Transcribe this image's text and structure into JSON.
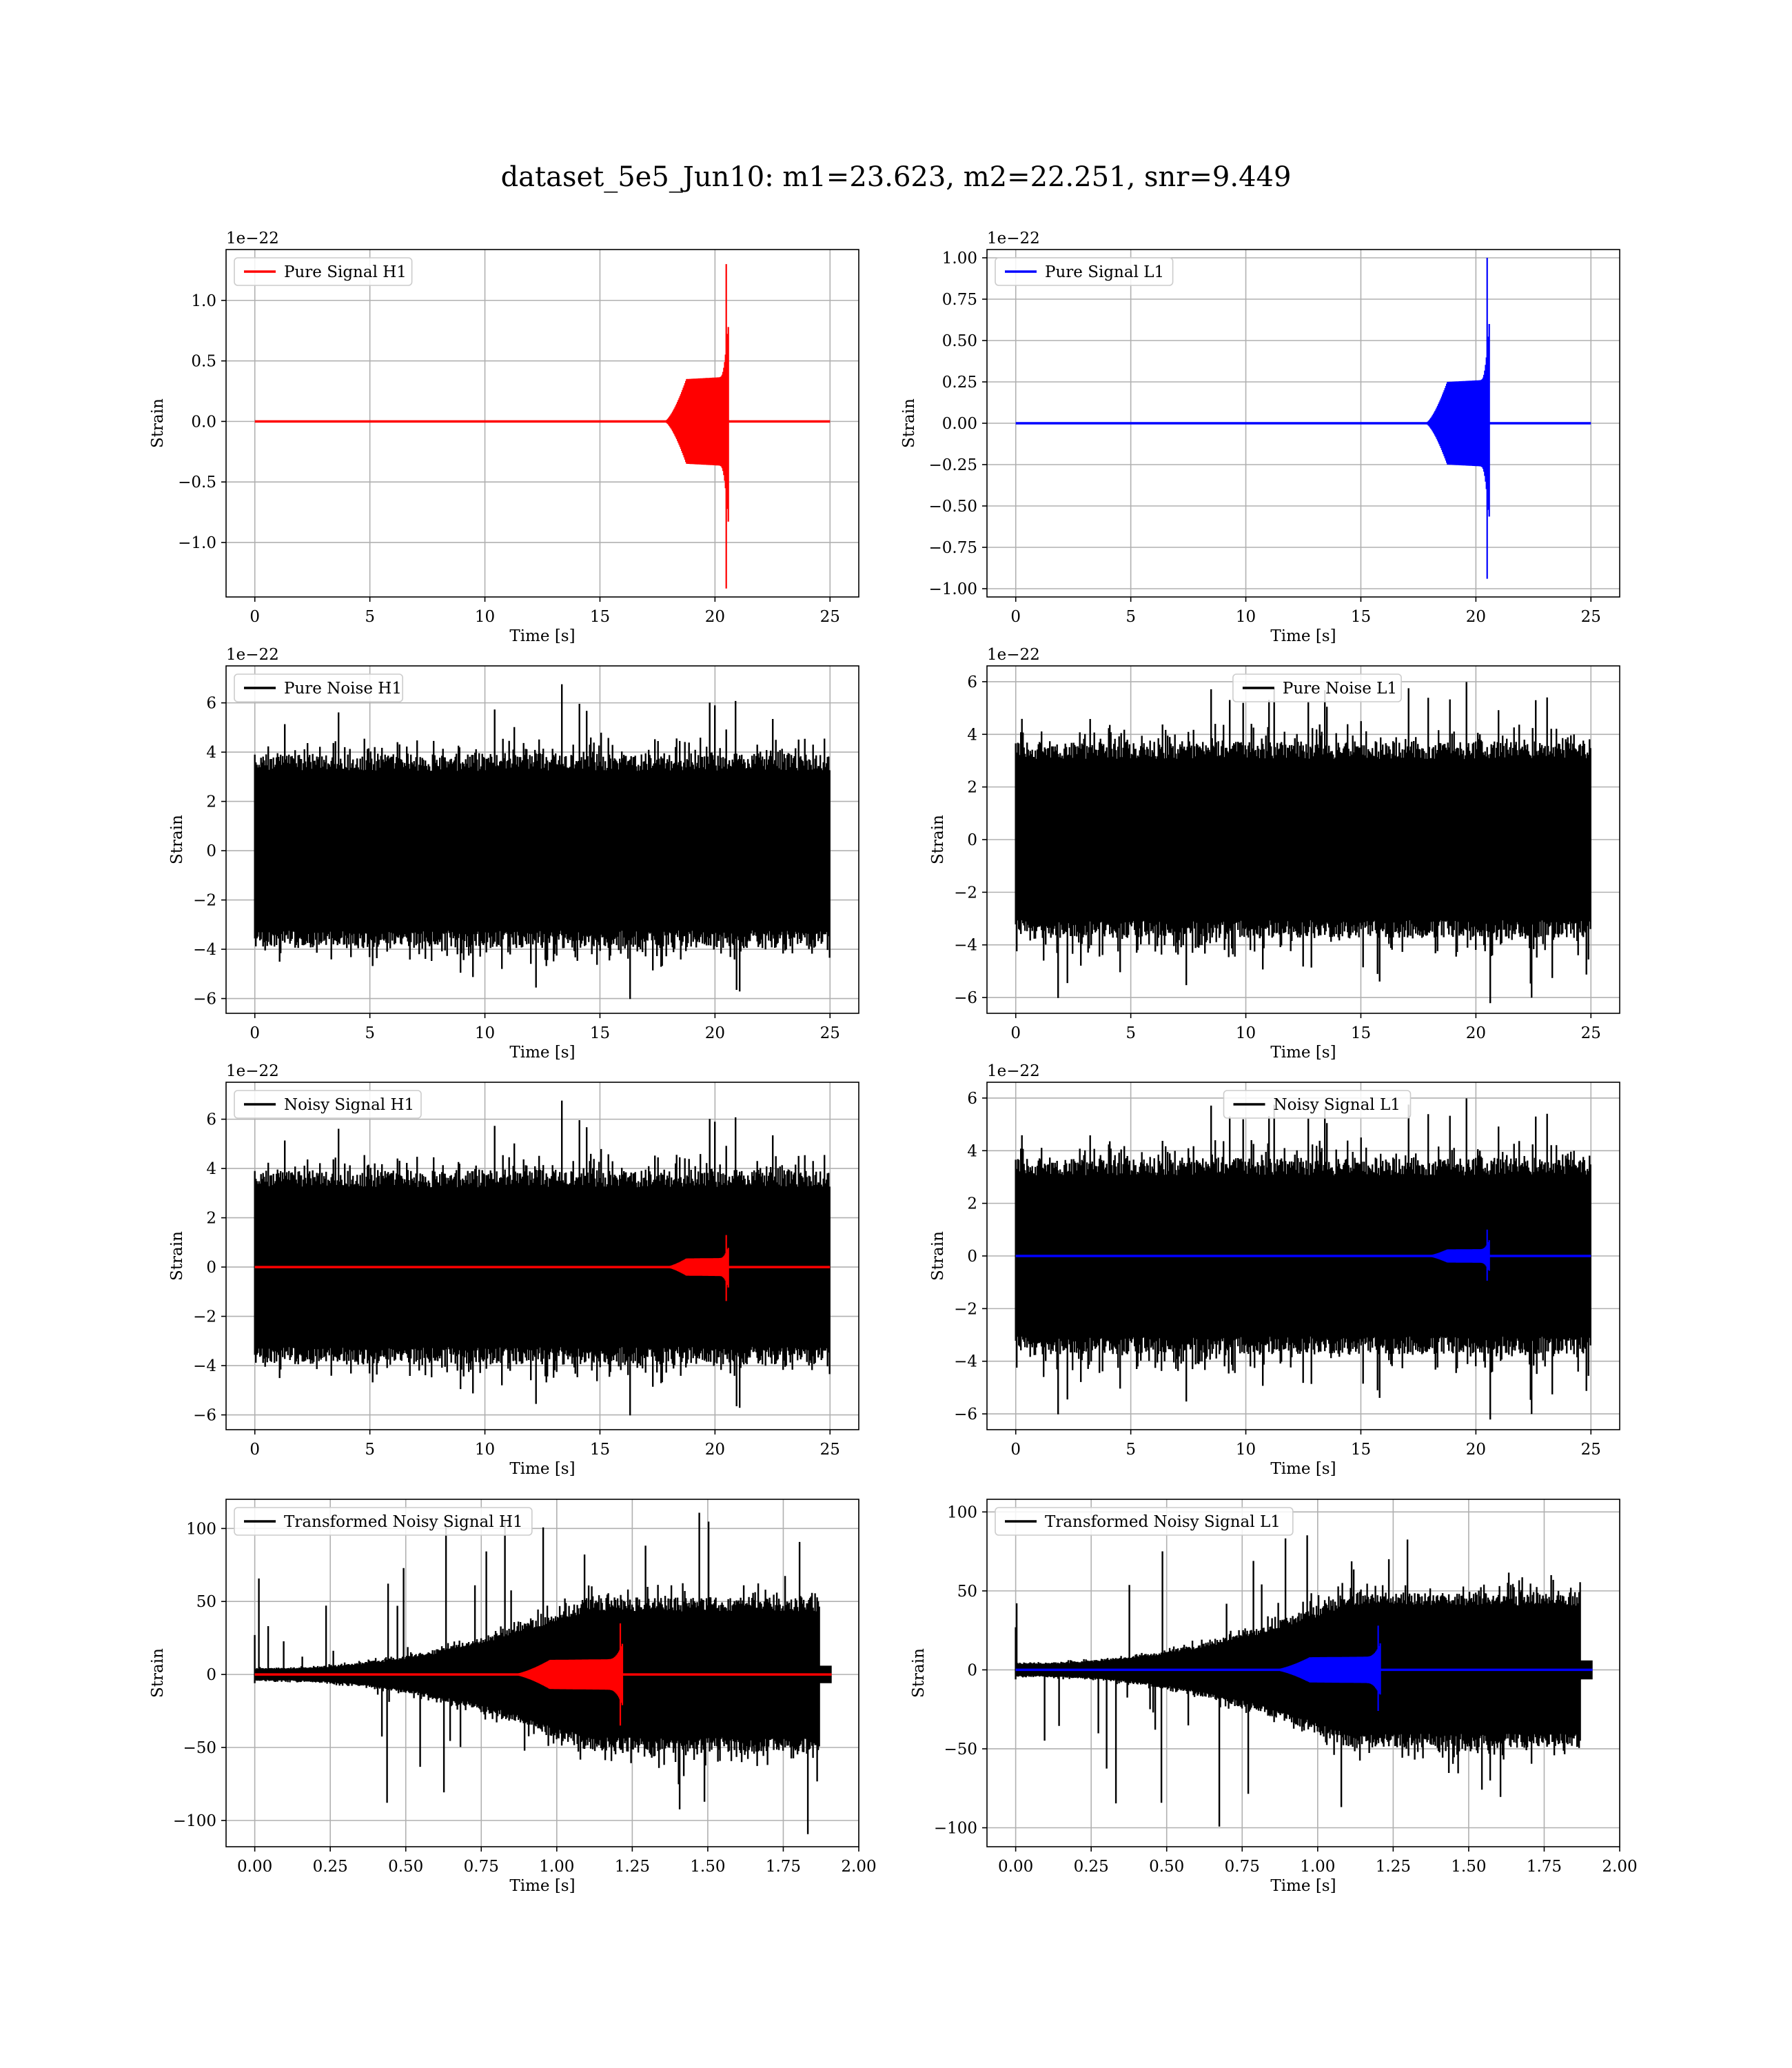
{
  "figure": {
    "title": "dataset_5e5_Jun10: m1=23.623, m2=22.251, snr=9.449"
  },
  "chart_data": [
    {
      "type": "line",
      "legend": "Pure Signal H1",
      "legend_position": "top-left",
      "xlabel": "Time [s]",
      "ylabel": "Strain",
      "y_offset_text": "1e−22",
      "xlim": [
        -1.25,
        26.25
      ],
      "ylim": [
        -1.45,
        1.42
      ],
      "xticks": [
        0,
        5,
        10,
        15,
        20,
        25
      ],
      "xtick_labels": [
        "0",
        "5",
        "10",
        "15",
        "20",
        "25"
      ],
      "yticks": [
        -1.0,
        -0.5,
        0.0,
        0.5,
        1.0
      ],
      "ytick_labels": [
        "−1.0",
        "−0.5",
        "0.0",
        "0.5",
        "1.0"
      ],
      "grid": true,
      "series": [
        {
          "kind": "chirp",
          "color": "#ff0000",
          "t_start": 0,
          "t_end": 25,
          "t_onset": 17.8,
          "t_merger": 20.55,
          "amp_plateau": 0.35,
          "peak_pos": 1.3,
          "peak_neg": -1.38,
          "seed": 11
        }
      ]
    },
    {
      "type": "line",
      "legend": "Pure Signal L1",
      "legend_position": "top-left",
      "xlabel": "Time [s]",
      "ylabel": "Strain",
      "y_offset_text": "1e−22",
      "xlim": [
        -1.25,
        26.25
      ],
      "ylim": [
        -1.05,
        1.05
      ],
      "xticks": [
        0,
        5,
        10,
        15,
        20,
        25
      ],
      "xtick_labels": [
        "0",
        "5",
        "10",
        "15",
        "20",
        "25"
      ],
      "yticks": [
        -1.0,
        -0.75,
        -0.5,
        -0.25,
        0.0,
        0.25,
        0.5,
        0.75,
        1.0
      ],
      "ytick_labels": [
        "−1.00",
        "−0.75",
        "−0.50",
        "−0.25",
        "0.00",
        "0.25",
        "0.50",
        "0.75",
        "1.00"
      ],
      "grid": true,
      "series": [
        {
          "kind": "chirp",
          "color": "#0000ff",
          "t_start": 0,
          "t_end": 25,
          "t_onset": 17.8,
          "t_merger": 20.55,
          "amp_plateau": 0.25,
          "peak_pos": 1.0,
          "peak_neg": -0.94,
          "seed": 12
        }
      ]
    },
    {
      "type": "line",
      "legend": "Pure Noise H1",
      "legend_position": "top-left",
      "xlabel": "Time [s]",
      "ylabel": "Strain",
      "y_offset_text": "1e−22",
      "xlim": [
        -1.25,
        26.25
      ],
      "ylim": [
        -6.6,
        7.5
      ],
      "xticks": [
        0,
        5,
        10,
        15,
        20,
        25
      ],
      "xtick_labels": [
        "0",
        "5",
        "10",
        "15",
        "20",
        "25"
      ],
      "yticks": [
        -6,
        -4,
        -2,
        0,
        2,
        4,
        6
      ],
      "ytick_labels": [
        "−6",
        "−4",
        "−2",
        "0",
        "2",
        "4",
        "6"
      ],
      "grid": true,
      "series": [
        {
          "kind": "noise",
          "color": "#000000",
          "t_start": 0,
          "t_end": 25,
          "core": 3.6,
          "spike_max": 6.9,
          "spike_min": -6.1,
          "seed": 21
        }
      ]
    },
    {
      "type": "line",
      "legend": "Pure Noise L1",
      "legend_position": "top-center",
      "xlabel": "Time [s]",
      "ylabel": "Strain",
      "y_offset_text": "1e−22",
      "xlim": [
        -1.25,
        26.25
      ],
      "ylim": [
        -6.6,
        6.6
      ],
      "xticks": [
        0,
        5,
        10,
        15,
        20,
        25
      ],
      "xtick_labels": [
        "0",
        "5",
        "10",
        "15",
        "20",
        "25"
      ],
      "yticks": [
        -6,
        -4,
        -2,
        0,
        2,
        4,
        6
      ],
      "ytick_labels": [
        "−6",
        "−4",
        "−2",
        "0",
        "2",
        "4",
        "6"
      ],
      "grid": true,
      "series": [
        {
          "kind": "noise",
          "color": "#000000",
          "t_start": 0,
          "t_end": 25,
          "core": 3.4,
          "spike_max": 6.0,
          "spike_min": -6.3,
          "seed": 22
        }
      ]
    },
    {
      "type": "line",
      "legend": "Noisy Signal H1",
      "legend_position": "top-left",
      "xlabel": "Time [s]",
      "ylabel": "Strain",
      "y_offset_text": "1e−22",
      "xlim": [
        -1.25,
        26.25
      ],
      "ylim": [
        -6.6,
        7.5
      ],
      "xticks": [
        0,
        5,
        10,
        15,
        20,
        25
      ],
      "xtick_labels": [
        "0",
        "5",
        "10",
        "15",
        "20",
        "25"
      ],
      "yticks": [
        -6,
        -4,
        -2,
        0,
        2,
        4,
        6
      ],
      "ytick_labels": [
        "−6",
        "−4",
        "−2",
        "0",
        "2",
        "4",
        "6"
      ],
      "grid": true,
      "series": [
        {
          "kind": "noise",
          "color": "#000000",
          "t_start": 0,
          "t_end": 25,
          "core": 3.6,
          "spike_max": 6.9,
          "spike_min": -6.1,
          "seed": 21
        },
        {
          "kind": "chirp",
          "color": "#ff0000",
          "t_start": 0,
          "t_end": 25,
          "t_onset": 17.8,
          "t_merger": 20.55,
          "amp_plateau": 0.35,
          "peak_pos": 1.3,
          "peak_neg": -1.38,
          "seed": 11
        }
      ]
    },
    {
      "type": "line",
      "legend": "Noisy Signal L1",
      "legend_position": "top-center",
      "xlabel": "Time [s]",
      "ylabel": "Strain",
      "y_offset_text": "1e−22",
      "xlim": [
        -1.25,
        26.25
      ],
      "ylim": [
        -6.6,
        6.6
      ],
      "xticks": [
        0,
        5,
        10,
        15,
        20,
        25
      ],
      "xtick_labels": [
        "0",
        "5",
        "10",
        "15",
        "20",
        "25"
      ],
      "yticks": [
        -6,
        -4,
        -2,
        0,
        2,
        4,
        6
      ],
      "ytick_labels": [
        "−6",
        "−4",
        "−2",
        "0",
        "2",
        "4",
        "6"
      ],
      "grid": true,
      "series": [
        {
          "kind": "noise",
          "color": "#000000",
          "t_start": 0,
          "t_end": 25,
          "core": 3.4,
          "spike_max": 6.0,
          "spike_min": -6.3,
          "seed": 22
        },
        {
          "kind": "chirp",
          "color": "#0000ff",
          "t_start": 0,
          "t_end": 25,
          "t_onset": 17.8,
          "t_merger": 20.55,
          "amp_plateau": 0.25,
          "peak_pos": 1.0,
          "peak_neg": -0.94,
          "seed": 12
        }
      ]
    },
    {
      "type": "line",
      "legend": "Transformed Noisy Signal H1",
      "legend_position": "top-left",
      "xlabel": "Time [s]",
      "ylabel": "Strain",
      "y_offset_text": "",
      "xlim": [
        -0.095,
        2.0
      ],
      "ylim": [
        -118,
        120
      ],
      "xticks": [
        0.0,
        0.25,
        0.5,
        0.75,
        1.0,
        1.25,
        1.5,
        1.75,
        2.0
      ],
      "xtick_labels": [
        "0.00",
        "0.25",
        "0.50",
        "0.75",
        "1.00",
        "1.25",
        "1.50",
        "1.75",
        "2.00"
      ],
      "yticks": [
        -100,
        -50,
        0,
        50,
        100
      ],
      "ytick_labels": [
        "−100",
        "−50",
        "0",
        "50",
        "100"
      ],
      "grid": true,
      "series": [
        {
          "kind": "transformed_noise",
          "color": "#000000",
          "t_start": 0,
          "t_end": 1.91,
          "t_noise_end": 1.87,
          "t_rise": 1.1,
          "core_start": 4,
          "core_end": 48,
          "spike_max": 110,
          "spike_min": -110,
          "seed": 31
        },
        {
          "kind": "chirp",
          "color": "#ff0000",
          "t_start": 0,
          "t_end": 1.91,
          "t_onset": 0.85,
          "t_merger": 1.215,
          "amp_plateau": 10,
          "peak_pos": 35,
          "peak_neg": -35,
          "seed": 13
        }
      ]
    },
    {
      "type": "line",
      "legend": "Transformed Noisy Signal L1",
      "legend_position": "top-left",
      "xlabel": "Time [s]",
      "ylabel": "Strain",
      "y_offset_text": "",
      "xlim": [
        -0.095,
        2.0
      ],
      "ylim": [
        -112,
        108
      ],
      "xticks": [
        0.0,
        0.25,
        0.5,
        0.75,
        1.0,
        1.25,
        1.5,
        1.75,
        2.0
      ],
      "xtick_labels": [
        "0.00",
        "0.25",
        "0.50",
        "0.75",
        "1.00",
        "1.25",
        "1.50",
        "1.75",
        "2.00"
      ],
      "yticks": [
        -100,
        -50,
        0,
        50,
        100
      ],
      "ytick_labels": [
        "−100",
        "−50",
        "0",
        "50",
        "100"
      ],
      "grid": true,
      "series": [
        {
          "kind": "transformed_noise",
          "color": "#000000",
          "t_start": 0,
          "t_end": 1.91,
          "t_noise_end": 1.87,
          "t_rise": 1.1,
          "core_start": 4,
          "core_end": 45,
          "spike_max": 100,
          "spike_min": -107,
          "seed": 32
        },
        {
          "kind": "chirp",
          "color": "#0000ff",
          "t_start": 0,
          "t_end": 1.91,
          "t_onset": 0.85,
          "t_merger": 1.205,
          "amp_plateau": 8,
          "peak_pos": 28,
          "peak_neg": -26,
          "seed": 14
        }
      ]
    }
  ]
}
